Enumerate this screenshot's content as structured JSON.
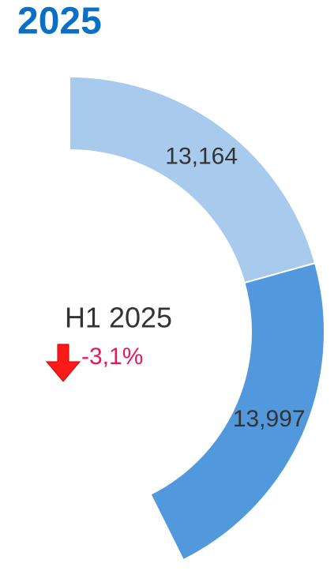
{
  "chart_data": {
    "type": "donut",
    "title": "2025",
    "values": [
      13164,
      13997
    ],
    "value_labels": [
      "13,164",
      "13,997"
    ],
    "colors": [
      "#a8caec",
      "#5298dc"
    ],
    "center_label": "H1 2025",
    "change_label": "-3,1%"
  }
}
